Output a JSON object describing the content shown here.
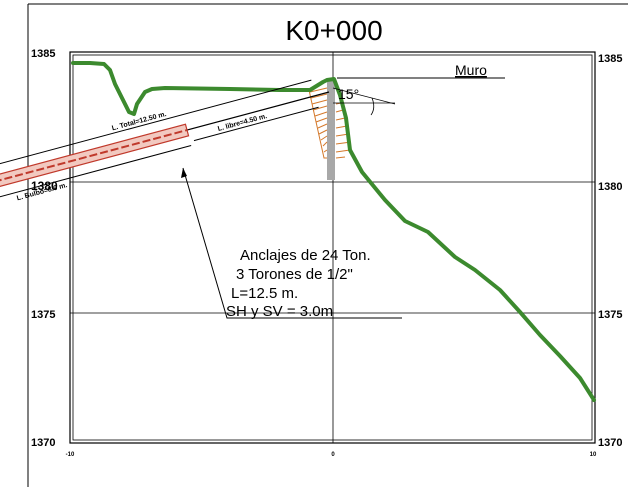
{
  "title": "K0+000",
  "axes": {
    "left_labels": [
      "1385",
      "1380",
      "1375",
      "1370"
    ],
    "right_labels": [
      "1385",
      "1380",
      "1375",
      "1370"
    ],
    "bottom_labels": [
      "-10",
      "0",
      "10"
    ]
  },
  "annotations": {
    "wall_label": "Muro",
    "angle_label": "15°",
    "total_length": "L. Total=12.50 m.",
    "free_length": "L. libre=4.50 m.",
    "bulb_length": "L. Bulbo=8.0 m.",
    "note_lines": [
      "Anclajes de 24 Ton.",
      "3 Torones de 1/2\"",
      "L=12.5 m.",
      "SH y SV = 3.0m"
    ]
  },
  "colors": {
    "terrain": "#3c8a2e",
    "wall": "#a8a8a8",
    "hatch": "#d4782a",
    "bulb": "#c0392b"
  }
}
